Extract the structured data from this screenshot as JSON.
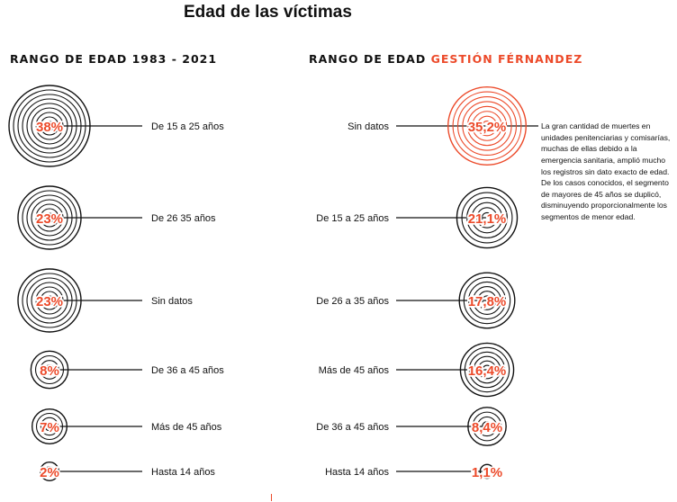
{
  "title": "Edad de las víctimas",
  "left_header": "RANGO DE EDAD 1983 - 2021",
  "right_header_prefix": "RANGO DE EDAD ",
  "right_header_accent": "GESTIÓN FÉRNANDEZ",
  "annotation": "La gran cantidad de muertes en unidades penitenciarias y comisarías, muchas de ellas debido a la emergencia sanitaria, amplió mucho los registros sin dato exacto de edad. De los casos conocidos, el segmento de mayores de 45 años se duplicó, disminuyendo proporcionalmente los segmentos de menor edad.",
  "colors": {
    "accent": "#ec4a2a",
    "ink": "#111111"
  },
  "chart_data": [
    {
      "type": "concentric-circles",
      "title": "RANGO DE EDAD 1983 - 2021",
      "items": [
        {
          "label": "De 15 a 25 años",
          "value": 38,
          "display": "38%"
        },
        {
          "label": "De 26 35 años",
          "value": 23,
          "display": "23%"
        },
        {
          "label": "Sin datos",
          "value": 23,
          "display": "23%"
        },
        {
          "label": "De 36 a 45 años",
          "value": 8,
          "display": "8%"
        },
        {
          "label": "Más de 45 años",
          "value": 7,
          "display": "7%"
        },
        {
          "label": "Hasta 14 años",
          "value": 2,
          "display": "2%"
        }
      ]
    },
    {
      "type": "concentric-circles",
      "title": "RANGO DE EDAD GESTIÓN FÉRNANDEZ",
      "highlight": "Sin datos",
      "items": [
        {
          "label": "Sin datos",
          "value": 35.2,
          "display": "35,2%"
        },
        {
          "label": "De 15 a 25 años",
          "value": 21.1,
          "display": "21,1%"
        },
        {
          "label": "De 26 a 35 años",
          "value": 17.8,
          "display": "17,8%"
        },
        {
          "label": "Más de 45 años",
          "value": 16.4,
          "display": "16,4%"
        },
        {
          "label": "De 36 a 45 años",
          "value": 8.4,
          "display": "8,4%"
        },
        {
          "label": "Hasta 14 años",
          "value": 1.1,
          "display": "1,1%"
        }
      ]
    }
  ]
}
